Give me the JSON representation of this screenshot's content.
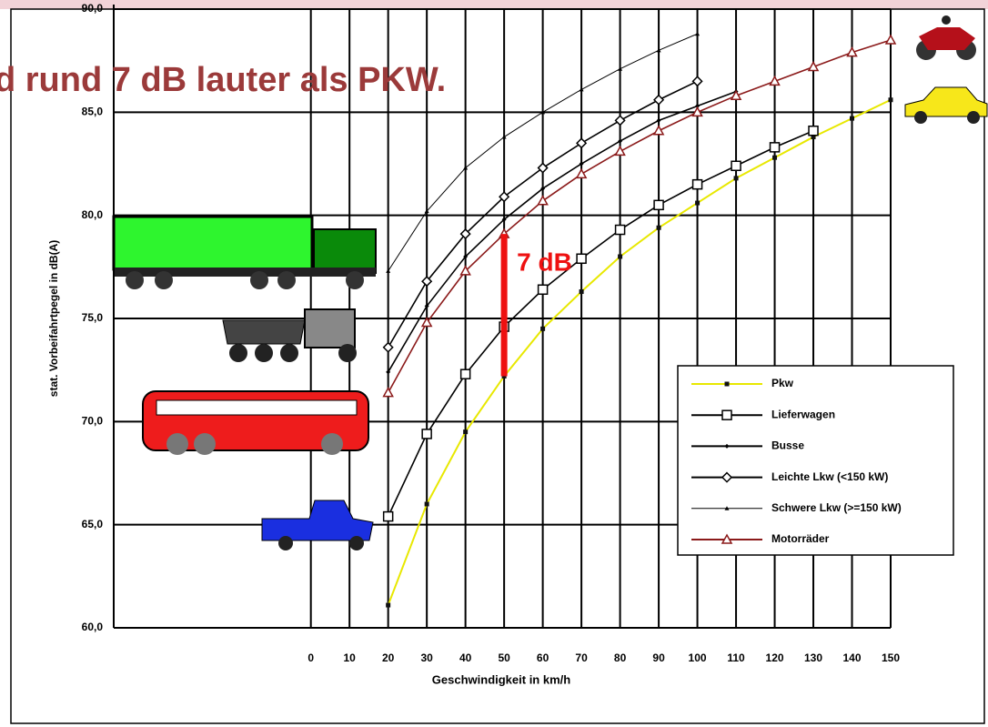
{
  "chart_data": {
    "type": "line",
    "title": "d rund 7 dB lauter als PKW.",
    "x_label": "Geschwindigkeit in km/h",
    "y_label": "stat. Vorbeifahrtpegel in dB(A)",
    "xlim": [
      -51,
      150
    ],
    "xticks": [
      0,
      10,
      20,
      30,
      40,
      50,
      60,
      70,
      80,
      90,
      100,
      110,
      120,
      130,
      140,
      150
    ],
    "ylim": [
      60,
      90
    ],
    "yticks": [
      {
        "value": 60,
        "label": "60,0"
      },
      {
        "value": 65,
        "label": "65,0"
      },
      {
        "value": 70,
        "label": "70,0"
      },
      {
        "value": 75,
        "label": "75,0"
      },
      {
        "value": 80,
        "label": "80,0"
      },
      {
        "value": 85,
        "label": "85,0"
      },
      {
        "value": 90,
        "label": "90,0"
      }
    ],
    "grid": true,
    "legend": "lower right",
    "series": [
      {
        "name": "Pkw",
        "color": "#e8e800",
        "marker": "dot-square",
        "x": [
          20,
          30,
          40,
          50,
          60,
          70,
          80,
          90,
          100,
          110,
          120,
          130,
          140,
          150
        ],
        "values": [
          61.1,
          66.0,
          69.5,
          72.2,
          74.5,
          76.3,
          78.0,
          79.4,
          80.6,
          81.8,
          82.8,
          83.8,
          84.7,
          85.6
        ]
      },
      {
        "name": "Lieferwagen",
        "color": "#000000",
        "marker": "open-square",
        "x": [
          20,
          30,
          40,
          50,
          60,
          70,
          80,
          90,
          100,
          110,
          120,
          130
        ],
        "values": [
          65.4,
          69.4,
          72.3,
          74.6,
          76.4,
          77.9,
          79.3,
          80.5,
          81.5,
          82.4,
          83.3,
          84.1
        ]
      },
      {
        "name": "Busse",
        "color": "#000000",
        "marker": "dot-diamond",
        "x": [
          20,
          30,
          40,
          50,
          60,
          70,
          80,
          90,
          100,
          110
        ],
        "values": [
          72.4,
          75.6,
          78.0,
          79.8,
          81.3,
          82.5,
          83.6,
          84.6,
          85.3,
          86.0
        ]
      },
      {
        "name": "Leichte Lkw (<150 kW)",
        "color": "#000000",
        "marker": "open-diamond",
        "x": [
          20,
          30,
          40,
          50,
          60,
          70,
          80,
          90,
          100
        ],
        "values": [
          73.6,
          76.8,
          79.1,
          80.9,
          82.3,
          83.5,
          84.6,
          85.6,
          86.5
        ]
      },
      {
        "name": "Schwere Lkw (>=150 kW)",
        "color": "#000000",
        "marker": "dot-triangle",
        "x": [
          20,
          30,
          40,
          50,
          60,
          70,
          80,
          90,
          100
        ],
        "values": [
          77.3,
          80.2,
          82.3,
          83.8,
          85.0,
          86.1,
          87.1,
          88.0,
          88.8
        ]
      },
      {
        "name": "Motorräder",
        "color": "#8b1a1a",
        "marker": "open-triangle",
        "x": [
          20,
          30,
          40,
          50,
          60,
          70,
          80,
          90,
          100,
          110,
          120,
          130,
          140,
          150
        ],
        "values": [
          71.4,
          74.8,
          77.3,
          79.1,
          80.7,
          82.0,
          83.1,
          84.1,
          85.0,
          85.8,
          86.5,
          87.2,
          87.9,
          88.5
        ]
      }
    ],
    "annotation": {
      "text": "7 dB",
      "color": "#ee1111",
      "x": 50,
      "from": 72.2,
      "to": 79.1
    }
  }
}
